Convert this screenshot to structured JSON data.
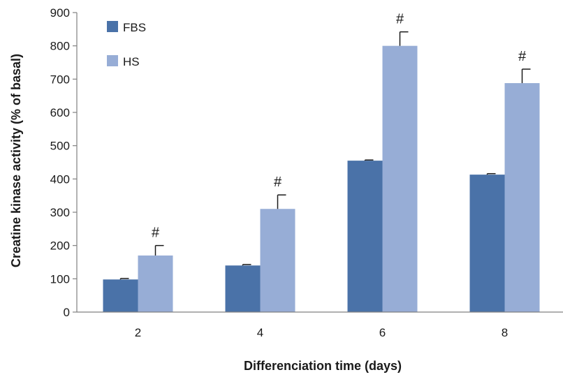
{
  "chart_data": {
    "type": "bar",
    "title": "",
    "xlabel": "Differenciation time (days)",
    "ylabel": "Creatine kinase activity (% of basal)",
    "categories": [
      "2",
      "4",
      "6",
      "8"
    ],
    "ylim": [
      0,
      900
    ],
    "yticks": [
      0,
      100,
      200,
      300,
      400,
      500,
      600,
      700,
      800,
      900
    ],
    "grid": false,
    "legend_position": "top-left",
    "series": [
      {
        "name": "FBS",
        "color": "#4a72a8",
        "values": [
          98,
          140,
          455,
          413
        ],
        "errors": [
          3,
          3,
          2,
          3
        ]
      },
      {
        "name": "HS",
        "color": "#97add6",
        "values": [
          170,
          310,
          800,
          688
        ],
        "errors": [
          30,
          42,
          42,
          42
        ]
      }
    ],
    "annotations": [
      {
        "category": "2",
        "series": "HS",
        "text": "#"
      },
      {
        "category": "4",
        "series": "HS",
        "text": "#"
      },
      {
        "category": "6",
        "series": "HS",
        "text": "#"
      },
      {
        "category": "8",
        "series": "HS",
        "text": "#"
      }
    ]
  }
}
